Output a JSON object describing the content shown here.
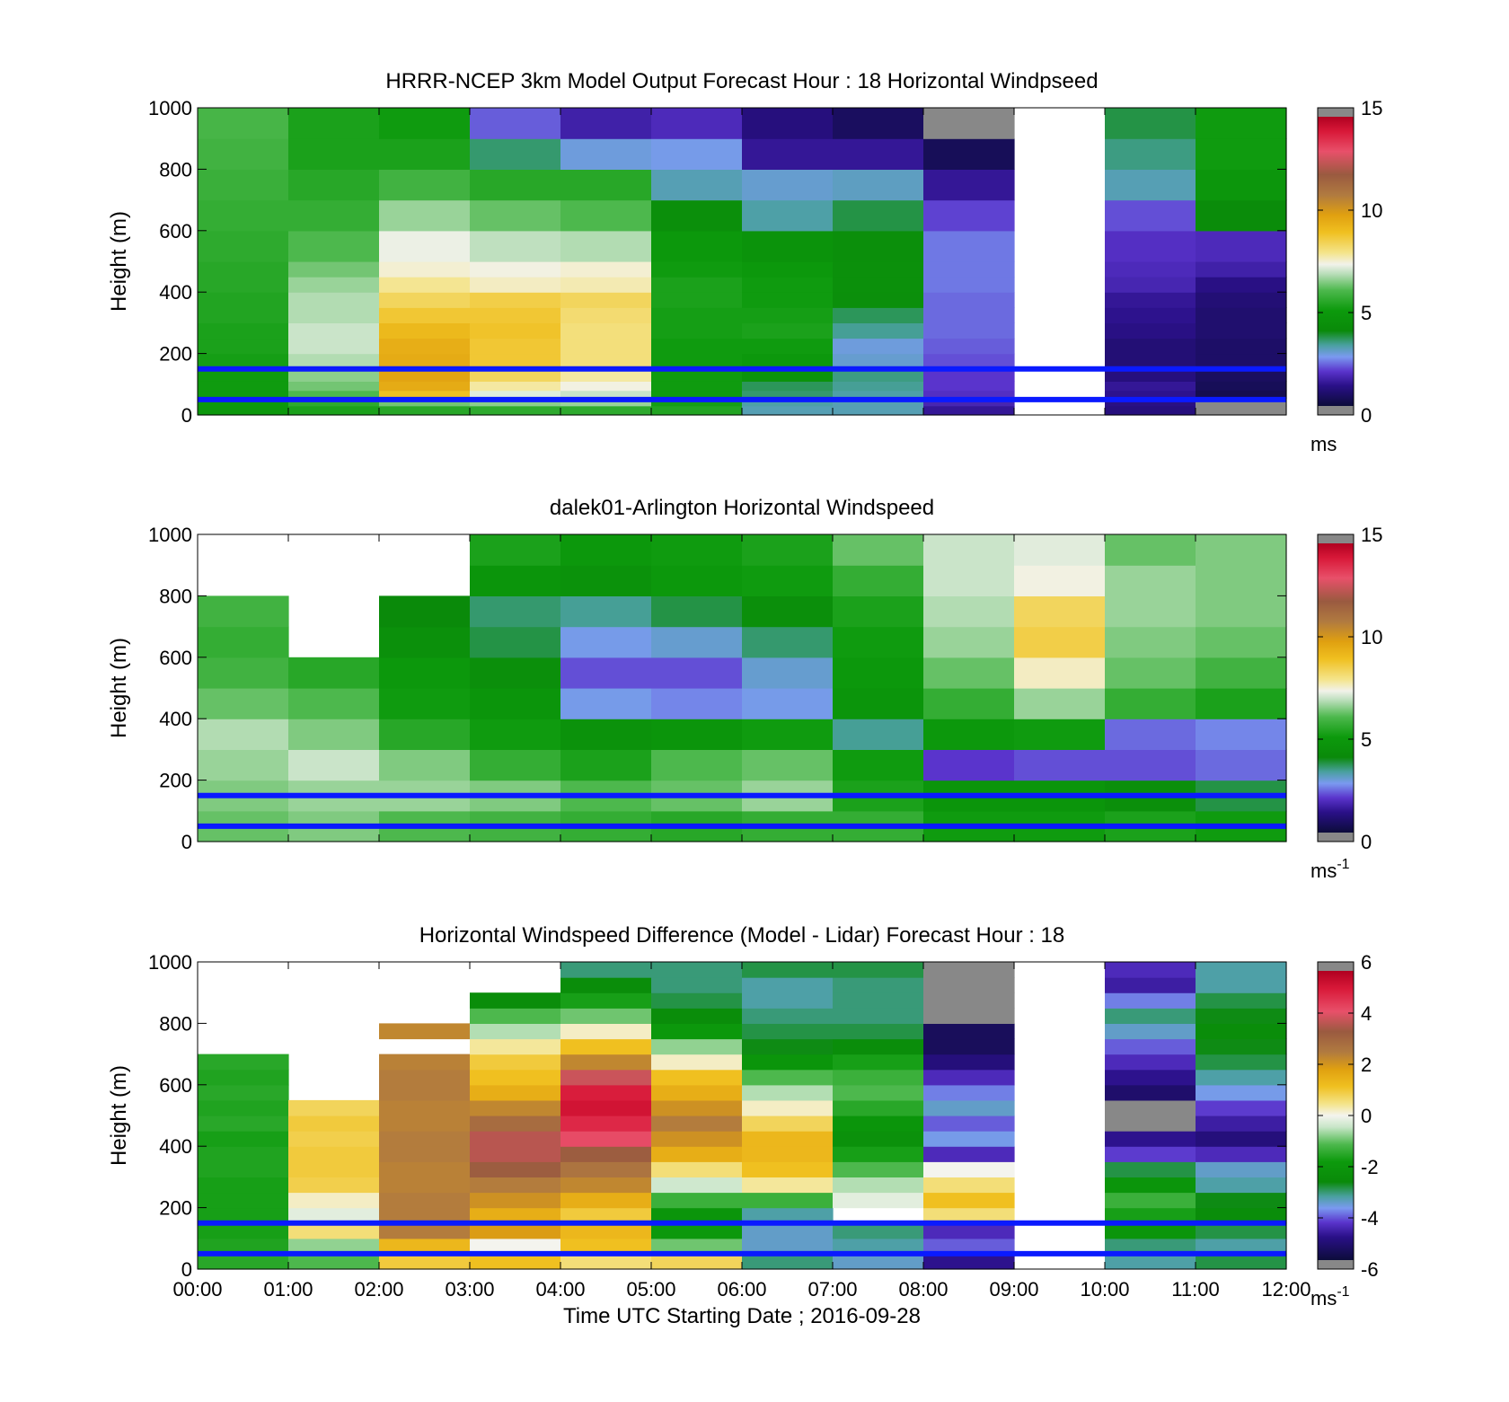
{
  "chart_data": [
    {
      "type": "heatmap",
      "title": "HRRR-NCEP 3km Model Output   Forecast Hour : 18 Horizontal Windpseed",
      "ylabel": "Height (m)",
      "xlabel": "",
      "ylim": [
        0,
        1000
      ],
      "yticks": [
        "0",
        "200",
        "400",
        "600",
        "800",
        "1000"
      ],
      "xlim_hours": [
        0,
        12
      ],
      "xticks": [],
      "colorbar": {
        "min": 0,
        "max": 15,
        "ticks": [
          "0",
          "5",
          "10",
          "15"
        ],
        "unit": "ms",
        "unit_sup": "",
        "scale": "speed"
      },
      "reference_lines_m": [
        150,
        50
      ],
      "heights_m": [
        0,
        30,
        55,
        80,
        110,
        150,
        200,
        250,
        300,
        350,
        400,
        450,
        500,
        600,
        700,
        800,
        900,
        1000
      ],
      "time_bins_h": [
        0,
        1,
        2,
        3,
        4,
        5,
        6,
        7,
        8,
        9,
        10,
        11,
        12
      ],
      "values": [
        [
          4.8,
          4.9,
          5.0,
          5.0,
          5.0,
          5.1,
          5.2,
          5.2,
          5.3,
          5.3,
          5.4,
          5.4,
          5.5,
          5.6,
          5.7,
          5.8,
          5.9
        ],
        [
          5.2,
          5.5,
          6.0,
          6.3,
          6.5,
          6.8,
          7.0,
          7.0,
          6.8,
          6.8,
          6.6,
          6.3,
          6.0,
          5.6,
          5.4,
          5.2,
          5.2
        ],
        [
          5.4,
          6.3,
          9.0,
          9.6,
          9.8,
          9.6,
          9.5,
          9.2,
          8.8,
          8.4,
          7.9,
          7.5,
          7.3,
          6.6,
          5.8,
          5.2,
          5.0
        ],
        [
          5.5,
          6.5,
          7.2,
          7.8,
          8.4,
          8.8,
          8.8,
          8.9,
          8.8,
          8.6,
          7.6,
          7.4,
          6.9,
          6.2,
          5.4,
          3.4,
          2.1
        ],
        [
          5.5,
          6.6,
          7.0,
          7.4,
          7.8,
          8.1,
          8.1,
          8.1,
          8.2,
          8.4,
          7.7,
          7.5,
          6.8,
          6.0,
          5.4,
          2.7,
          1.4
        ],
        [
          5.3,
          5.1,
          5.0,
          5.0,
          5.0,
          5.0,
          5.0,
          5.1,
          5.1,
          5.2,
          5.2,
          5.0,
          4.8,
          4.2,
          3.0,
          2.6,
          1.6
        ],
        [
          3.0,
          3.1,
          3.4,
          3.5,
          4.5,
          4.8,
          5.0,
          5.2,
          5.1,
          5.0,
          5.0,
          4.8,
          4.5,
          3.1,
          2.8,
          1.2,
          0.9
        ],
        [
          3.0,
          3.0,
          3.1,
          3.2,
          3.3,
          2.8,
          2.7,
          3.2,
          3.5,
          4.2,
          4.3,
          4.3,
          4.2,
          3.6,
          2.9,
          1.2,
          0.5
        ],
        [
          1.2,
          1.5,
          1.7,
          1.8,
          1.8,
          2.0,
          2.1,
          2.2,
          2.2,
          2.2,
          2.3,
          2.3,
          2.3,
          1.9,
          1.2,
          0.4,
          -1
        ],
        [
          null,
          null,
          null,
          null,
          null,
          null,
          null,
          null,
          null,
          null,
          null,
          null,
          null,
          null,
          null,
          null,
          null
        ],
        [
          0.9,
          1.0,
          1.1,
          1.2,
          0.9,
          0.8,
          0.8,
          1.0,
          1.1,
          1.2,
          1.5,
          1.6,
          1.7,
          2.0,
          3.0,
          3.3,
          3.6
        ],
        [
          -1,
          -1,
          0.3,
          0.4,
          0.5,
          0.6,
          0.6,
          0.7,
          0.7,
          0.8,
          1.0,
          1.4,
          1.6,
          4.0,
          4.7,
          5.0,
          5.0
        ]
      ]
    },
    {
      "type": "heatmap",
      "title": "dalek01-Arlington  Horizontal Windspeed",
      "ylabel": "Height (m)",
      "xlabel": "",
      "ylim": [
        0,
        1000
      ],
      "yticks": [
        "0",
        "200",
        "400",
        "600",
        "800",
        "1000"
      ],
      "xlim_hours": [
        0,
        12
      ],
      "xticks": [],
      "colorbar": {
        "min": 0,
        "max": 15,
        "ticks": [
          "0",
          "5",
          "10",
          "15"
        ],
        "unit": "ms",
        "unit_sup": "-1",
        "scale": "speed"
      },
      "reference_lines_m": [
        150,
        50
      ],
      "heights_m": [
        0,
        100,
        200,
        300,
        400,
        500,
        600,
        700,
        800,
        900,
        1000
      ],
      "time_bins_h": [
        0,
        1,
        2,
        3,
        4,
        5,
        6,
        7,
        8,
        9,
        10,
        11,
        12
      ],
      "values": [
        [
          6.2,
          6.4,
          6.6,
          6.8,
          6.2,
          5.8,
          5.6,
          5.8,
          null,
          null
        ],
        [
          6.4,
          6.6,
          7.0,
          6.4,
          6.0,
          5.4,
          null,
          null,
          null,
          null
        ],
        [
          6.0,
          6.6,
          6.4,
          5.4,
          5.0,
          4.8,
          4.3,
          3.9,
          null,
          null
        ],
        [
          5.8,
          6.4,
          5.6,
          5.0,
          4.6,
          4.2,
          3.6,
          3.4,
          4.6,
          5.2
        ],
        [
          5.6,
          6.0,
          5.2,
          4.4,
          2.6,
          2.0,
          2.6,
          3.2,
          4.4,
          4.8
        ],
        [
          5.4,
          6.2,
          6.0,
          4.6,
          2.4,
          2.0,
          2.8,
          3.6,
          4.8,
          5.0
        ],
        [
          5.6,
          6.6,
          6.2,
          5.0,
          2.6,
          2.8,
          3.4,
          4.2,
          5.0,
          5.2
        ],
        [
          5.6,
          5.2,
          5.0,
          3.2,
          4.6,
          4.8,
          5.0,
          5.2,
          5.6,
          6.2
        ],
        [
          5.0,
          4.6,
          1.8,
          4.8,
          5.6,
          6.2,
          6.6,
          6.8,
          7.0,
          7.0
        ],
        [
          5.0,
          4.6,
          2.0,
          5.0,
          6.6,
          7.6,
          8.6,
          8.4,
          7.4,
          7.2
        ],
        [
          5.2,
          4.2,
          2.0,
          2.2,
          5.6,
          6.2,
          6.4,
          6.6,
          6.6,
          6.2
        ],
        [
          5.0,
          3.6,
          2.2,
          2.4,
          5.2,
          5.8,
          6.2,
          6.4,
          6.4,
          6.4
        ]
      ]
    },
    {
      "type": "heatmap",
      "title": "Horizontal Windspeed Difference (Model - Lidar) Forecast Hour : 18",
      "ylabel": "Height (m)",
      "xlabel": "Time UTC  Starting Date ; 2016-09-28",
      "ylim": [
        0,
        1000
      ],
      "yticks": [
        "0",
        "200",
        "400",
        "600",
        "800",
        "1000"
      ],
      "xlim_hours": [
        0,
        12
      ],
      "xticks": [
        "00:00",
        "01:00",
        "02:00",
        "03:00",
        "04:00",
        "05:00",
        "06:00",
        "07:00",
        "08:00",
        "09:00",
        "10:00",
        "11:00",
        "12:00"
      ],
      "colorbar": {
        "min": -6,
        "max": 6,
        "ticks": [
          "-6",
          "-4",
          "-2",
          "0",
          "2",
          "4",
          "6"
        ],
        "unit": "ms",
        "unit_sup": "-1",
        "scale": "diff"
      },
      "reference_lines_m": [
        150,
        50
      ],
      "heights_m": [
        0,
        50,
        100,
        150,
        200,
        250,
        300,
        350,
        400,
        450,
        500,
        550,
        600,
        650,
        700,
        750,
        800,
        850,
        900,
        950,
        1000
      ],
      "time_bins_h": [
        0,
        1,
        2,
        3,
        4,
        5,
        6,
        7,
        8,
        9,
        10,
        11,
        12
      ],
      "values": [
        [
          -1.6,
          -1.7,
          -1.8,
          -1.8,
          -1.8,
          -1.8,
          -1.7,
          -1.7,
          -1.8,
          -1.6,
          -1.7,
          -1.6,
          -1.7,
          -1.6,
          null,
          null,
          null,
          null,
          null,
          null
        ],
        [
          -1.2,
          -0.8,
          0.6,
          -0.2,
          0.2,
          0.9,
          1.0,
          1.0,
          0.9,
          1.0,
          0.8,
          null,
          null,
          null,
          null,
          null,
          null,
          null,
          null,
          null
        ],
        [
          1.0,
          1.4,
          2.6,
          2.6,
          2.6,
          2.5,
          2.5,
          2.6,
          2.6,
          2.5,
          2.5,
          2.6,
          2.6,
          2.5,
          null,
          2.4,
          null,
          null,
          null,
          null
        ],
        [
          1.2,
          0.0,
          2.0,
          1.6,
          2.2,
          2.6,
          3.4,
          3.8,
          3.8,
          3.0,
          2.4,
          1.6,
          1.2,
          1.0,
          0.4,
          -0.6,
          -1.2,
          -2.6,
          null,
          null
        ],
        [
          0.6,
          1.2,
          1.4,
          1.0,
          1.6,
          2.4,
          2.8,
          3.4,
          4.4,
          5.0,
          5.4,
          5.2,
          4.0,
          2.4,
          1.2,
          0.2,
          -1.0,
          -1.8,
          -2.6,
          -3.2
        ],
        [
          0.8,
          -1.0,
          -2.0,
          -2.2,
          -1.4,
          -0.4,
          0.6,
          1.6,
          2.2,
          2.6,
          2.2,
          1.6,
          1.2,
          0.2,
          -0.8,
          -2.0,
          -2.6,
          -3.0,
          -3.2,
          -3.2
        ],
        [
          -3.2,
          -3.6,
          -3.6,
          -3.4,
          -1.4,
          0.4,
          1.2,
          1.4,
          1.4,
          0.8,
          0.2,
          -0.6,
          -1.2,
          -2.2,
          -2.8,
          -3.0,
          -3.2,
          -3.4,
          -3.4,
          -3.0
        ],
        [
          -3.6,
          -3.4,
          -3.2,
          null,
          -0.2,
          -0.6,
          -1.2,
          -1.8,
          -2.4,
          -2.2,
          -1.6,
          -1.2,
          -1.4,
          -1.8,
          -2.6,
          -3.0,
          -3.2,
          -3.2,
          -3.2,
          -3.0
        ],
        [
          -5.0,
          -4.2,
          -4.6,
          0.6,
          1.2,
          0.6,
          0.0,
          -4.6,
          -3.8,
          -4.2,
          -3.6,
          -4.0,
          -4.6,
          -5.2,
          -5.6,
          -5.6,
          -7,
          -7,
          -7,
          -7
        ],
        [
          null,
          null,
          null,
          null,
          null,
          null,
          null,
          null,
          null,
          null,
          null,
          null,
          null,
          null,
          null,
          null,
          null,
          null,
          null,
          null
        ],
        [
          -3.4,
          -3.2,
          -2.2,
          -1.8,
          -1.4,
          -2.2,
          -3.0,
          -4.4,
          -5.0,
          -7,
          -7,
          -5.4,
          -5.0,
          -4.6,
          -4.2,
          -3.6,
          -3.2,
          -4.0,
          -4.8,
          -4.6
        ],
        [
          -3.0,
          -3.4,
          -3.0,
          -2.6,
          -2.8,
          -3.4,
          -3.6,
          -4.6,
          -5.2,
          -4.8,
          -4.4,
          -3.8,
          -3.4,
          -3.0,
          -2.8,
          -2.6,
          -2.8,
          -3.0,
          -3.4,
          -3.4
        ]
      ]
    }
  ]
}
